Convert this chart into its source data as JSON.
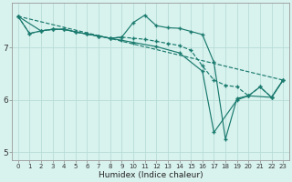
{
  "xlabel": "Humidex (Indice chaleur)",
  "bg_color": "#d8f2ee",
  "grid_color": "#b8ddd8",
  "line_color": "#1a7a6e",
  "xlim": [
    -0.5,
    23.5
  ],
  "ylim": [
    4.85,
    7.85
  ],
  "yticks": [
    5,
    6,
    7
  ],
  "xticks": [
    0,
    1,
    2,
    3,
    4,
    5,
    6,
    7,
    8,
    9,
    10,
    11,
    12,
    13,
    14,
    15,
    16,
    17,
    18,
    19,
    20,
    21,
    22,
    23
  ],
  "series": [
    {
      "x": [
        0,
        1,
        2,
        3,
        4,
        5,
        6,
        7,
        8,
        9,
        10,
        11,
        12,
        13,
        14,
        15,
        16,
        17,
        18,
        19,
        20,
        21,
        22,
        23
      ],
      "y": [
        7.6,
        7.27,
        7.32,
        7.35,
        7.35,
        7.3,
        7.26,
        7.22,
        7.18,
        7.2,
        7.48,
        7.62,
        7.42,
        7.38,
        7.37,
        7.31,
        7.25,
        6.72,
        5.25,
        6.03,
        6.08,
        6.25,
        6.05,
        6.38
      ],
      "style": "-",
      "marker": "+"
    },
    {
      "x": [
        0,
        1,
        2,
        3,
        4,
        5,
        6,
        7,
        8,
        9,
        10,
        11,
        12,
        13,
        14,
        15,
        16,
        17,
        18,
        19,
        20,
        21,
        22,
        23
      ],
      "y": [
        7.6,
        7.27,
        7.32,
        7.35,
        7.35,
        7.3,
        7.26,
        7.22,
        7.18,
        7.2,
        7.18,
        7.16,
        7.12,
        7.08,
        7.04,
        6.95,
        6.65,
        6.38,
        6.28,
        6.25,
        6.08,
        6.25,
        6.05,
        6.38
      ],
      "style": "--",
      "marker": "+"
    },
    {
      "x": [
        0,
        2,
        3,
        4,
        5,
        6,
        7,
        8,
        9,
        10,
        12,
        14,
        16,
        17,
        19,
        20,
        22,
        23
      ],
      "y": [
        7.6,
        7.32,
        7.35,
        7.35,
        7.3,
        7.26,
        7.22,
        7.18,
        7.14,
        7.1,
        7.02,
        6.9,
        6.55,
        5.38,
        6.0,
        6.08,
        6.05,
        6.38
      ],
      "style": "-",
      "marker": "+"
    },
    {
      "x": [
        0,
        23
      ],
      "y": [
        7.6,
        6.38
      ],
      "style": "--",
      "marker": null
    }
  ]
}
